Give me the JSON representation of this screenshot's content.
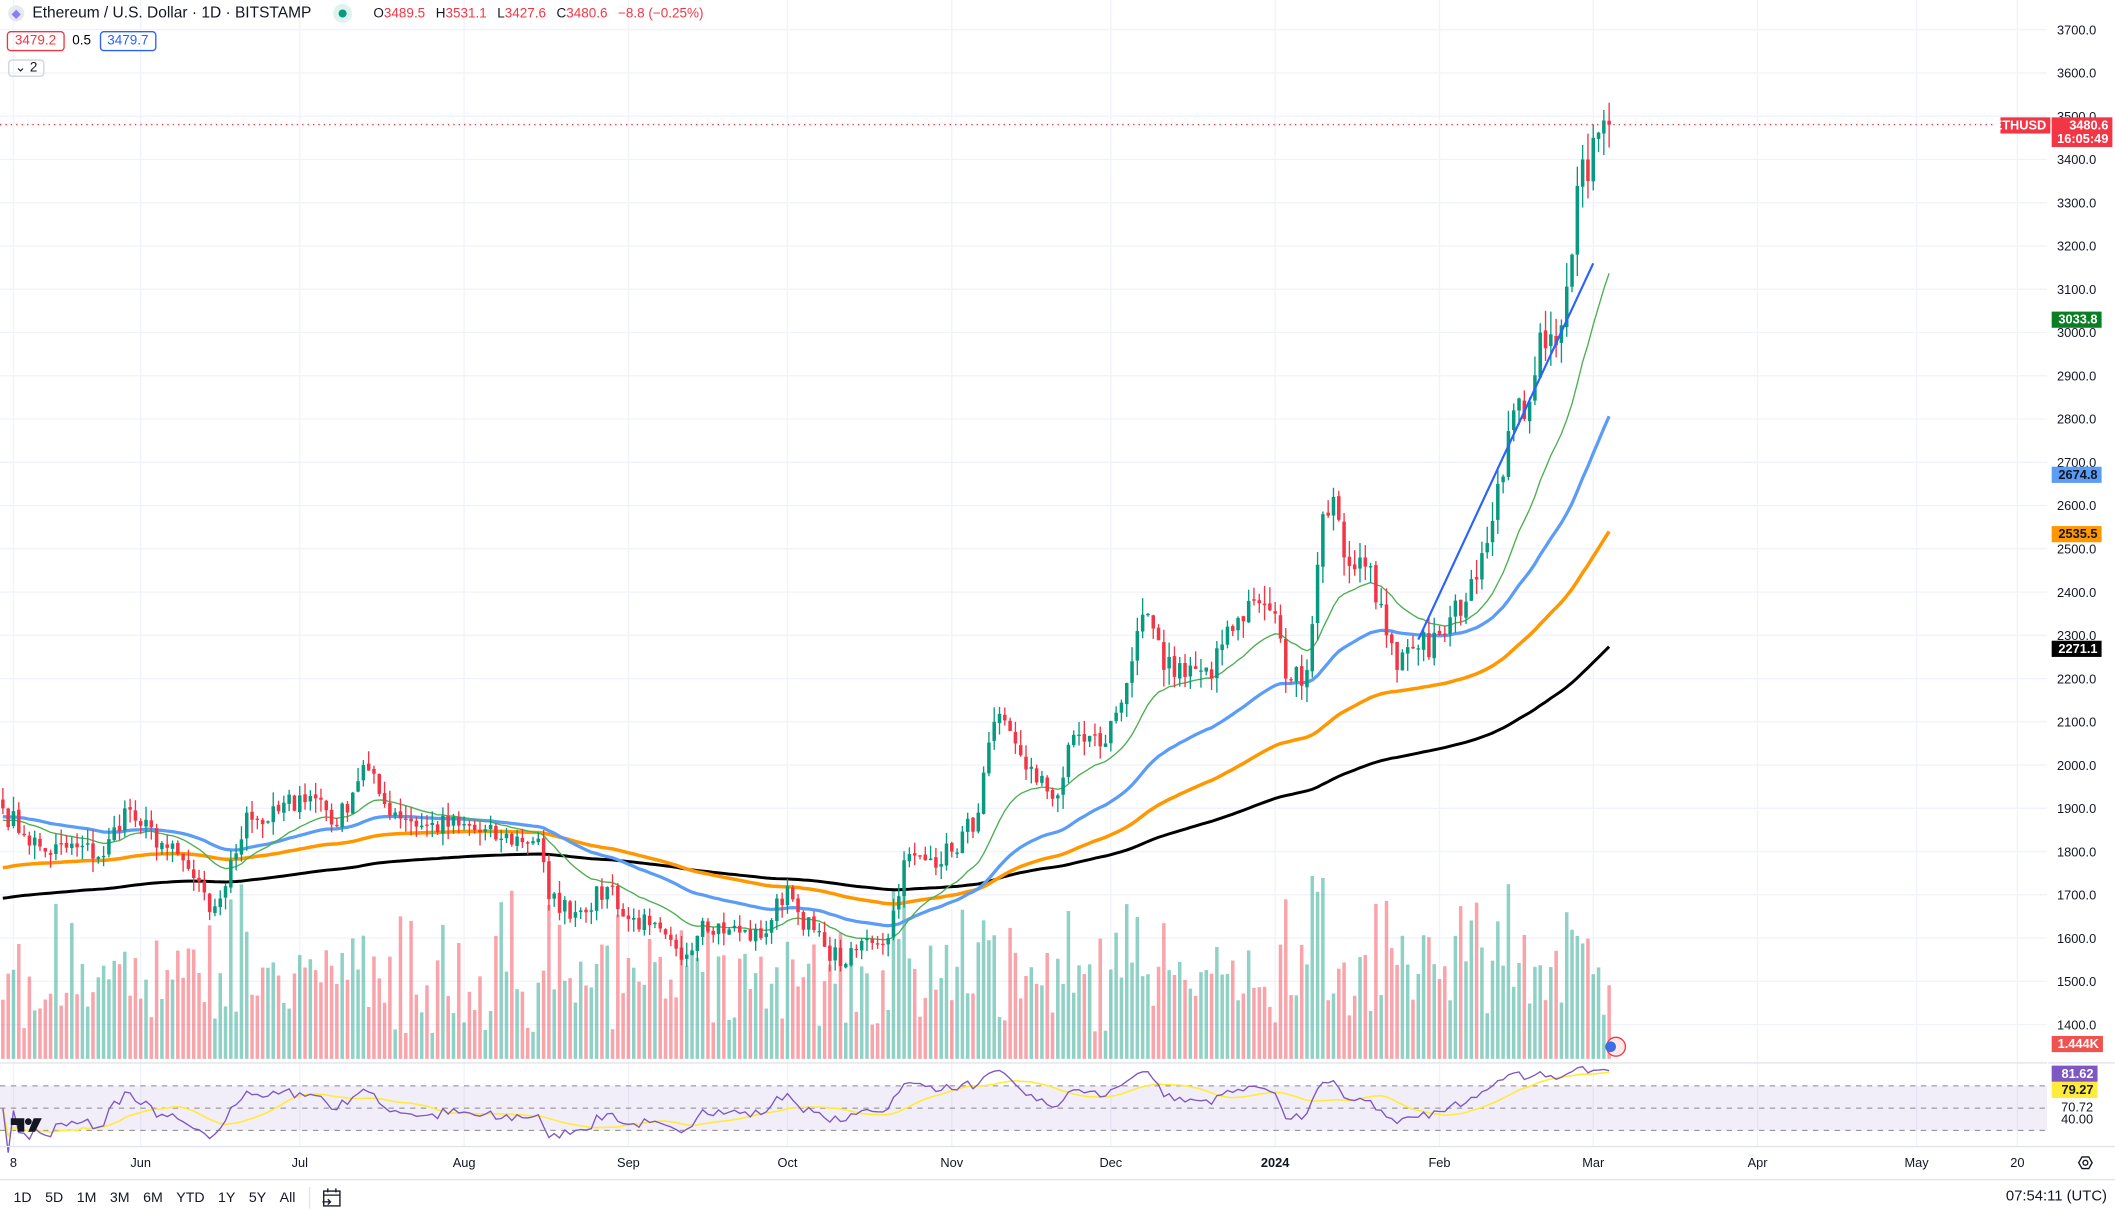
{
  "header": {
    "symbol_title": "Ethereum / U.S. Dollar · 1D · BITSTAMP",
    "open_label": "O",
    "open": "3489.5",
    "high_label": "H",
    "high": "3531.1",
    "low_label": "L",
    "low": "3427.6",
    "close_label": "C",
    "close": "3480.6",
    "change": "−8.8 (−0.25%)"
  },
  "trade": {
    "sell": "3479.2",
    "spread": "0.5",
    "buy": "3479.7"
  },
  "collapse": {
    "label": "⌄ 2"
  },
  "price_axis": {
    "ticks": [
      3700,
      3600,
      3500,
      3400,
      3300,
      3200,
      3100,
      3000,
      2900,
      2800,
      2700,
      2600,
      2500,
      2400,
      2300,
      2200,
      2100,
      2000,
      1900,
      1800,
      1700,
      1600,
      1500,
      1400
    ],
    "decimals": 1
  },
  "badges": {
    "symbol": "ETHUSD",
    "last_price": "3480.6",
    "countdown": "16:05:49",
    "ma_green": "3033.8",
    "ma_blue": "2674.8",
    "ma_orange": "2535.5",
    "ma_black": "2271.1",
    "volume": "1.444K",
    "rsi": "81.62",
    "rsi_ma": "79.27",
    "rsi_upper": "70.72",
    "rsi_lower": "40.00"
  },
  "time_axis": [
    {
      "label": "8",
      "date": "2023-05-08"
    },
    {
      "label": "Jun",
      "date": "2023-06-01"
    },
    {
      "label": "Jul",
      "date": "2023-07-01"
    },
    {
      "label": "Aug",
      "date": "2023-08-01"
    },
    {
      "label": "Sep",
      "date": "2023-09-01"
    },
    {
      "label": "Oct",
      "date": "2023-10-01"
    },
    {
      "label": "Nov",
      "date": "2023-11-01"
    },
    {
      "label": "Dec",
      "date": "2023-12-01"
    },
    {
      "label": "2024",
      "date": "2024-01-01"
    },
    {
      "label": "Feb",
      "date": "2024-02-01"
    },
    {
      "label": "Mar",
      "date": "2024-03-01"
    },
    {
      "label": "Apr",
      "date": "2024-04-01"
    },
    {
      "label": "May",
      "date": "2024-05-01"
    },
    {
      "label": "20",
      "date": "2024-05-20"
    }
  ],
  "ranges": [
    "1D",
    "5D",
    "1M",
    "3M",
    "6M",
    "YTD",
    "1Y",
    "5Y",
    "All"
  ],
  "clock": "07:54:11 (UTC)",
  "colors": {
    "up": "#089981",
    "down": "#f23645",
    "ma_green": "#4caf50",
    "ma_blue": "#5b9cf6",
    "ma_orange": "#ff9800",
    "ma_black": "#000000",
    "trendline": "#2962ff",
    "rsi": "#7e57c2",
    "rsi_ma": "#ffeb3b"
  },
  "icons": {
    "symbol": "ethereum-icon",
    "market_status": "live-dot-icon",
    "date_range": "calendar-goto-icon",
    "settings": "gear-icon",
    "logo": "tradingview-logo"
  },
  "chart_data": {
    "type": "candlestick",
    "closes": [
      [
        "2023-05-06",
        1900
      ],
      [
        "2023-05-10",
        1840
      ],
      [
        "2023-05-14",
        1800
      ],
      [
        "2023-05-20",
        1810
      ],
      [
        "2023-05-25",
        1790
      ],
      [
        "2023-05-29",
        1900
      ],
      [
        "2023-06-01",
        1860
      ],
      [
        "2023-06-05",
        1820
      ],
      [
        "2023-06-10",
        1760
      ],
      [
        "2023-06-14",
        1660
      ],
      [
        "2023-06-17",
        1720
      ],
      [
        "2023-06-21",
        1890
      ],
      [
        "2023-06-25",
        1870
      ],
      [
        "2023-07-01",
        1930
      ],
      [
        "2023-07-05",
        1920
      ],
      [
        "2023-07-08",
        1860
      ],
      [
        "2023-07-13",
        2000
      ],
      [
        "2023-07-17",
        1910
      ],
      [
        "2023-07-24",
        1860
      ],
      [
        "2023-07-31",
        1860
      ],
      [
        "2023-08-08",
        1830
      ],
      [
        "2023-08-15",
        1830
      ],
      [
        "2023-08-17",
        1690
      ],
      [
        "2023-08-22",
        1660
      ],
      [
        "2023-08-29",
        1720
      ],
      [
        "2023-08-31",
        1650
      ],
      [
        "2023-09-05",
        1630
      ],
      [
        "2023-09-11",
        1550
      ],
      [
        "2023-09-15",
        1640
      ],
      [
        "2023-09-20",
        1620
      ],
      [
        "2023-09-26",
        1600
      ],
      [
        "2023-10-01",
        1720
      ],
      [
        "2023-10-03",
        1660
      ],
      [
        "2023-10-08",
        1580
      ],
      [
        "2023-10-12",
        1540
      ],
      [
        "2023-10-16",
        1600
      ],
      [
        "2023-10-20",
        1600
      ],
      [
        "2023-10-23",
        1780
      ],
      [
        "2023-10-27",
        1780
      ],
      [
        "2023-11-01",
        1800
      ],
      [
        "2023-11-06",
        1890
      ],
      [
        "2023-11-09",
        2100
      ],
      [
        "2023-11-13",
        2050
      ],
      [
        "2023-11-17",
        1960
      ],
      [
        "2023-11-21",
        1930
      ],
      [
        "2023-11-24",
        2070
      ],
      [
        "2023-11-30",
        2050
      ],
      [
        "2023-12-05",
        2240
      ],
      [
        "2023-12-08",
        2350
      ],
      [
        "2023-12-11",
        2220
      ],
      [
        "2023-12-16",
        2230
      ],
      [
        "2023-12-20",
        2200
      ],
      [
        "2023-12-23",
        2320
      ],
      [
        "2023-12-28",
        2380
      ],
      [
        "2024-01-01",
        2350
      ],
      [
        "2024-01-03",
        2200
      ],
      [
        "2024-01-07",
        2220
      ],
      [
        "2024-01-10",
        2580
      ],
      [
        "2024-01-12",
        2620
      ],
      [
        "2024-01-14",
        2480
      ],
      [
        "2024-01-19",
        2460
      ],
      [
        "2024-01-22",
        2300
      ],
      [
        "2024-01-24",
        2220
      ],
      [
        "2024-01-28",
        2270
      ],
      [
        "2024-02-02",
        2300
      ],
      [
        "2024-02-07",
        2430
      ],
      [
        "2024-02-09",
        2490
      ],
      [
        "2024-02-12",
        2650
      ],
      [
        "2024-02-15",
        2820
      ],
      [
        "2024-02-17",
        2800
      ],
      [
        "2024-02-20",
        3000
      ],
      [
        "2024-02-23",
        2970
      ],
      [
        "2024-02-26",
        3180
      ],
      [
        "2024-02-28",
        3400
      ],
      [
        "2024-02-29",
        3350
      ],
      [
        "2024-03-01",
        3450
      ],
      [
        "2024-03-03",
        3490
      ],
      [
        "2024-03-04",
        3480.6
      ]
    ],
    "trendline": [
      [
        "2024-01-28",
        2290
      ],
      [
        "2024-03-01",
        3160
      ]
    ],
    "rsi_bands": [
      70,
      50,
      30
    ]
  }
}
